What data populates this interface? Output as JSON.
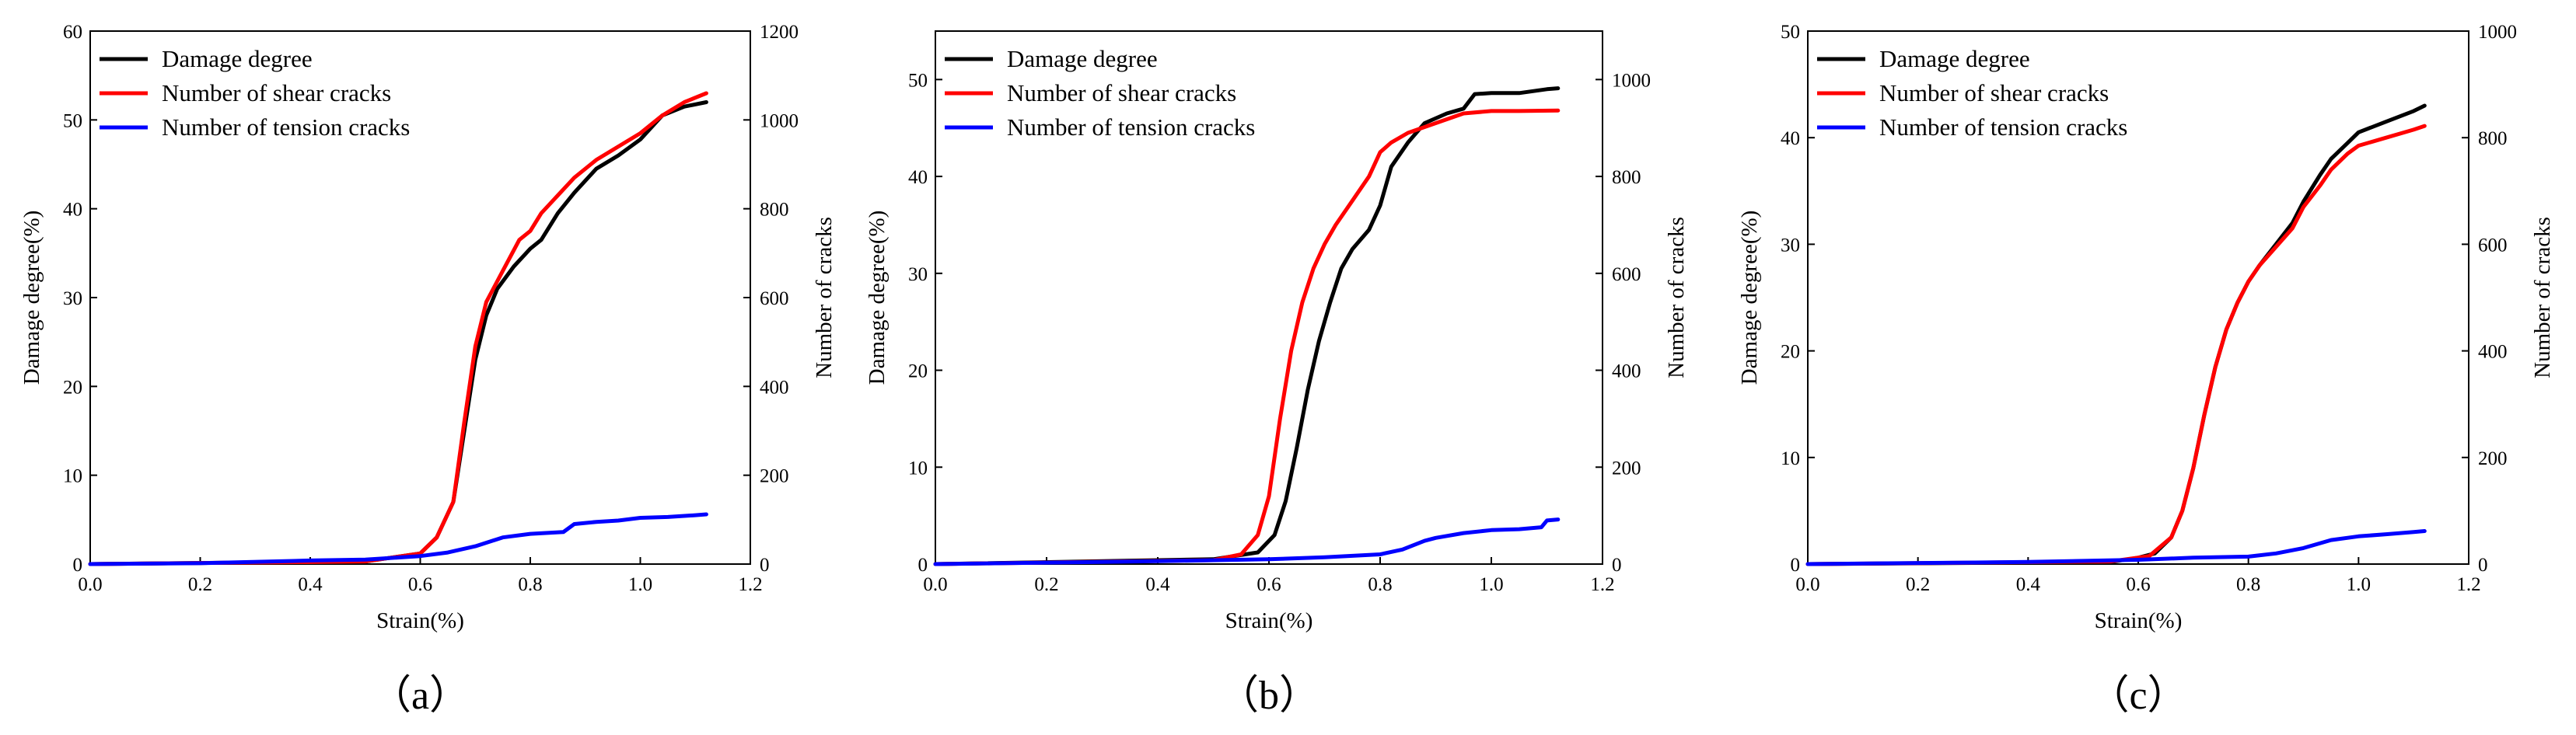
{
  "chart_data": [
    {
      "type": "line",
      "caption": "（a）",
      "xlabel": "Strain(%)",
      "ylabel": "Damage degree(%)",
      "y2label": "Number of cracks",
      "xlim": [
        0,
        1.2
      ],
      "ylim": [
        0,
        60
      ],
      "y2lim": [
        0,
        1200
      ],
      "xticks": [
        "0.0",
        "0.2",
        "0.4",
        "0.6",
        "0.8",
        "1.0",
        "1.2"
      ],
      "yticks": [
        "0",
        "10",
        "20",
        "30",
        "40",
        "50",
        "60"
      ],
      "y2ticks": [
        "0",
        "200",
        "400",
        "600",
        "800",
        "1000",
        "1200"
      ],
      "legend_position": "top-left",
      "series": [
        {
          "name": "Damage degree",
          "axis": "left",
          "color": "#000000",
          "x": [
            0,
            0.5,
            0.6,
            0.63,
            0.66,
            0.68,
            0.7,
            0.72,
            0.74,
            0.77,
            0.8,
            0.82,
            0.85,
            0.88,
            0.92,
            0.96,
            1.0,
            1.04,
            1.08,
            1.12
          ],
          "y": [
            0,
            0.3,
            1.2,
            3.0,
            7.0,
            15.0,
            23.0,
            28.0,
            31.0,
            33.5,
            35.5,
            36.5,
            39.5,
            41.8,
            44.5,
            46.0,
            47.8,
            50.5,
            51.5,
            52.0
          ]
        },
        {
          "name": "Number of shear cracks",
          "axis": "right",
          "color": "#ff0000",
          "x": [
            0,
            0.5,
            0.6,
            0.63,
            0.66,
            0.68,
            0.7,
            0.72,
            0.75,
            0.78,
            0.8,
            0.82,
            0.85,
            0.88,
            0.92,
            0.96,
            1.0,
            1.04,
            1.08,
            1.12
          ],
          "y": [
            0,
            6,
            24,
            60,
            140,
            320,
            490,
            590,
            660,
            730,
            750,
            790,
            830,
            870,
            910,
            940,
            970,
            1010,
            1040,
            1060
          ]
        },
        {
          "name": "Number of tension cracks",
          "axis": "right",
          "color": "#0000ff",
          "x": [
            0,
            0.2,
            0.4,
            0.5,
            0.6,
            0.65,
            0.7,
            0.75,
            0.8,
            0.86,
            0.88,
            0.92,
            0.96,
            1.0,
            1.05,
            1.1,
            1.12
          ],
          "y": [
            0,
            2,
            8,
            10,
            18,
            26,
            40,
            60,
            68,
            72,
            90,
            95,
            98,
            104,
            106,
            110,
            112
          ]
        }
      ]
    },
    {
      "type": "line",
      "caption": "（b）",
      "xlabel": "Strain(%)",
      "ylabel": "Damage degree(%)",
      "y2label": "Number of  cracks",
      "xlim": [
        0,
        1.2
      ],
      "ylim": [
        0,
        55
      ],
      "y2lim": [
        0,
        1100
      ],
      "xticks": [
        "0.0",
        "0.2",
        "0.4",
        "0.6",
        "0.8",
        "1.0",
        "1.2"
      ],
      "yticks": [
        "0",
        "10",
        "20",
        "30",
        "40",
        "50"
      ],
      "y2ticks": [
        "0",
        "200",
        "400",
        "600",
        "800",
        "1000"
      ],
      "legend_position": "top-left",
      "series": [
        {
          "name": "Damage degree",
          "axis": "left",
          "color": "#000000",
          "x": [
            0,
            0.5,
            0.58,
            0.61,
            0.63,
            0.65,
            0.67,
            0.69,
            0.71,
            0.73,
            0.75,
            0.78,
            0.8,
            0.82,
            0.85,
            0.88,
            0.92,
            0.95,
            0.97,
            1.0,
            1.05,
            1.1,
            1.12
          ],
          "y": [
            0,
            0.5,
            1.2,
            3.0,
            6.5,
            12.0,
            18.0,
            23.0,
            27.0,
            30.5,
            32.5,
            34.5,
            37.0,
            41.0,
            43.5,
            45.5,
            46.5,
            47.0,
            48.5,
            48.6,
            48.6,
            49.0,
            49.1
          ]
        },
        {
          "name": "Number of shear cracks",
          "axis": "right",
          "color": "#ff0000",
          "x": [
            0,
            0.5,
            0.55,
            0.58,
            0.6,
            0.62,
            0.64,
            0.66,
            0.68,
            0.7,
            0.72,
            0.75,
            0.78,
            0.8,
            0.82,
            0.85,
            0.9,
            0.95,
            1.0,
            1.05,
            1.12
          ],
          "y": [
            0,
            8,
            20,
            60,
            140,
            300,
            440,
            540,
            610,
            660,
            700,
            750,
            800,
            850,
            870,
            890,
            910,
            930,
            935,
            935,
            936
          ]
        },
        {
          "name": "Number of tension cracks",
          "axis": "right",
          "color": "#0000ff",
          "x": [
            0,
            0.4,
            0.6,
            0.7,
            0.8,
            0.84,
            0.88,
            0.9,
            0.95,
            1.0,
            1.05,
            1.09,
            1.1,
            1.12
          ],
          "y": [
            0,
            6,
            10,
            14,
            20,
            30,
            48,
            54,
            64,
            70,
            72,
            76,
            90,
            92
          ]
        }
      ]
    },
    {
      "type": "line",
      "caption": "（c）",
      "xlabel": "Strain(%)",
      "ylabel": "Damage degree(%)",
      "y2label": "Number of cracks",
      "xlim": [
        0,
        1.2
      ],
      "ylim": [
        0,
        50
      ],
      "y2lim": [
        0,
        1000
      ],
      "xticks": [
        "0.0",
        "0.2",
        "0.4",
        "0.6",
        "0.8",
        "1.0",
        "1.2"
      ],
      "yticks": [
        "0",
        "10",
        "20",
        "30",
        "40",
        "50"
      ],
      "y2ticks": [
        "0",
        "200",
        "400",
        "600",
        "800",
        "1000"
      ],
      "legend_position": "top-left",
      "series": [
        {
          "name": "Damage degree",
          "axis": "left",
          "color": "#000000",
          "x": [
            0,
            0.55,
            0.6,
            0.63,
            0.66,
            0.68,
            0.7,
            0.72,
            0.74,
            0.76,
            0.78,
            0.8,
            0.82,
            0.85,
            0.88,
            0.9,
            0.93,
            0.95,
            0.98,
            1.0,
            1.05,
            1.1,
            1.12
          ],
          "y": [
            0,
            0.2,
            0.6,
            1.0,
            2.5,
            5.0,
            9.0,
            14.0,
            18.5,
            22.0,
            24.5,
            26.5,
            28.0,
            30.0,
            32.0,
            34.0,
            36.5,
            38.0,
            39.5,
            40.5,
            41.5,
            42.5,
            43.0
          ]
        },
        {
          "name": "Number of shear cracks",
          "axis": "right",
          "color": "#ff0000",
          "x": [
            0,
            0.55,
            0.62,
            0.66,
            0.68,
            0.7,
            0.72,
            0.74,
            0.76,
            0.78,
            0.8,
            0.82,
            0.85,
            0.88,
            0.9,
            0.93,
            0.95,
            0.98,
            1.0,
            1.05,
            1.1,
            1.12
          ],
          "y": [
            0,
            5,
            15,
            50,
            100,
            180,
            280,
            370,
            440,
            490,
            530,
            560,
            595,
            630,
            670,
            710,
            740,
            770,
            785,
            800,
            815,
            822
          ]
        },
        {
          "name": "Number of tension cracks",
          "axis": "right",
          "color": "#0000ff",
          "x": [
            0,
            0.4,
            0.6,
            0.7,
            0.8,
            0.85,
            0.9,
            0.95,
            1.0,
            1.05,
            1.1,
            1.12
          ],
          "y": [
            0,
            4,
            8,
            12,
            14,
            20,
            30,
            45,
            52,
            56,
            60,
            62
          ]
        }
      ]
    }
  ]
}
